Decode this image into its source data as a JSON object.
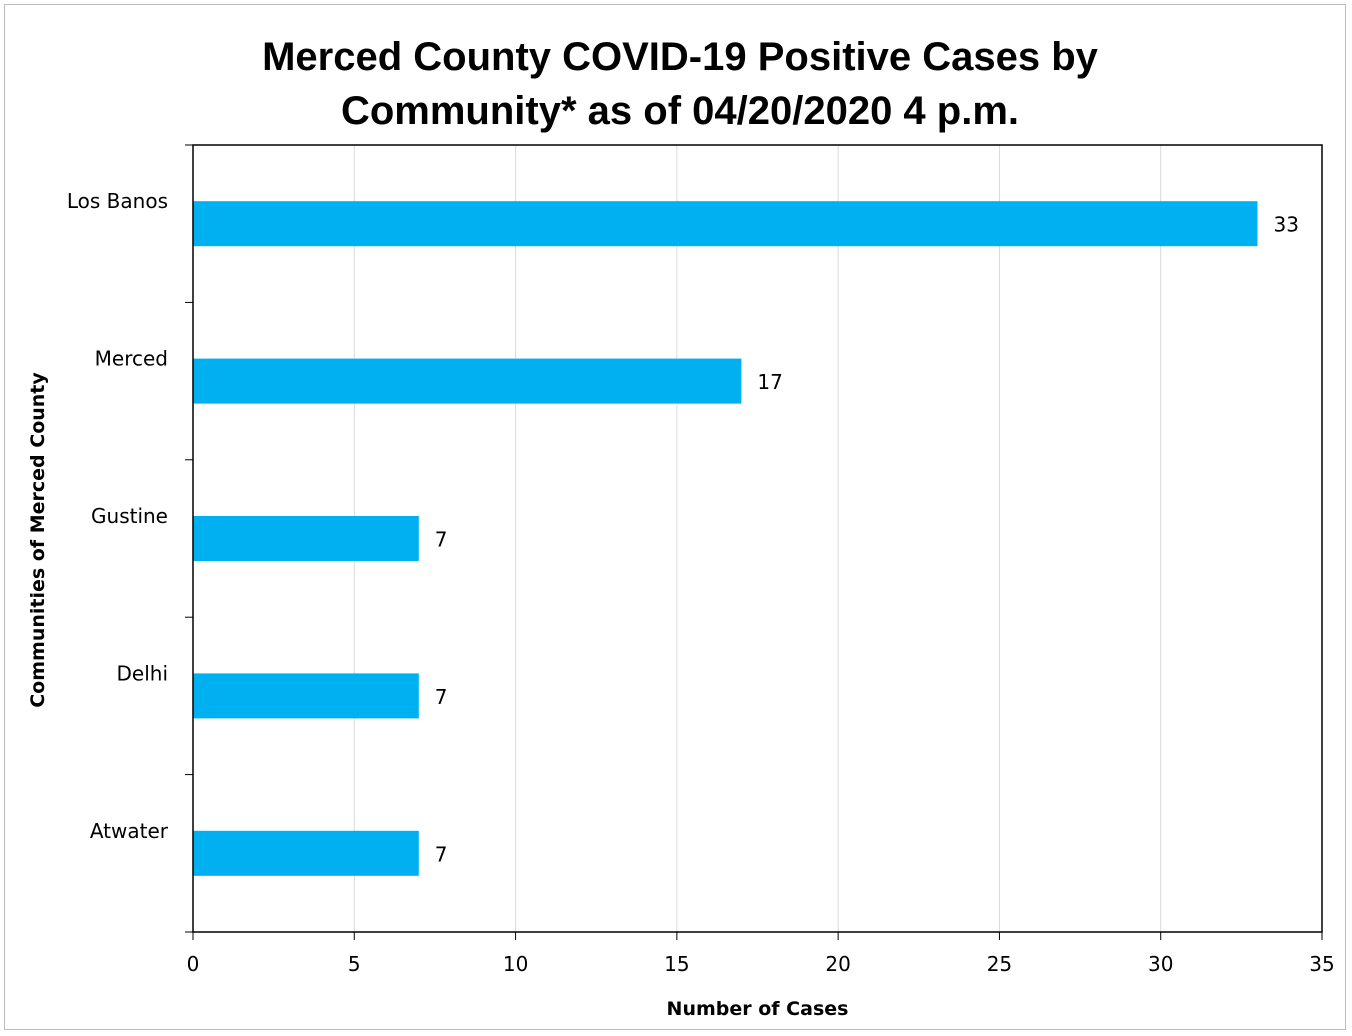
{
  "chart_data": {
    "type": "bar",
    "orientation": "horizontal",
    "title_lines": [
      "Merced County COVID-19 Positive Cases by",
      "Community* as of 04/20/2020 4 p.m."
    ],
    "xlabel": "Number of Cases",
    "ylabel": "Communities of Merced County",
    "categories": [
      "Los Banos",
      "Merced",
      "Gustine",
      "Delhi",
      "Atwater"
    ],
    "values": [
      33,
      17,
      7,
      7,
      7
    ],
    "data_labels": [
      "33",
      "17",
      "7",
      "7",
      "7"
    ],
    "xlim": [
      0,
      35
    ],
    "xticks": [
      0,
      5,
      10,
      15,
      20,
      25,
      30,
      35
    ],
    "grid": "vertical",
    "legend": "none",
    "bar_color": "#00B0F0",
    "grid_color": "#d9d9d9"
  }
}
